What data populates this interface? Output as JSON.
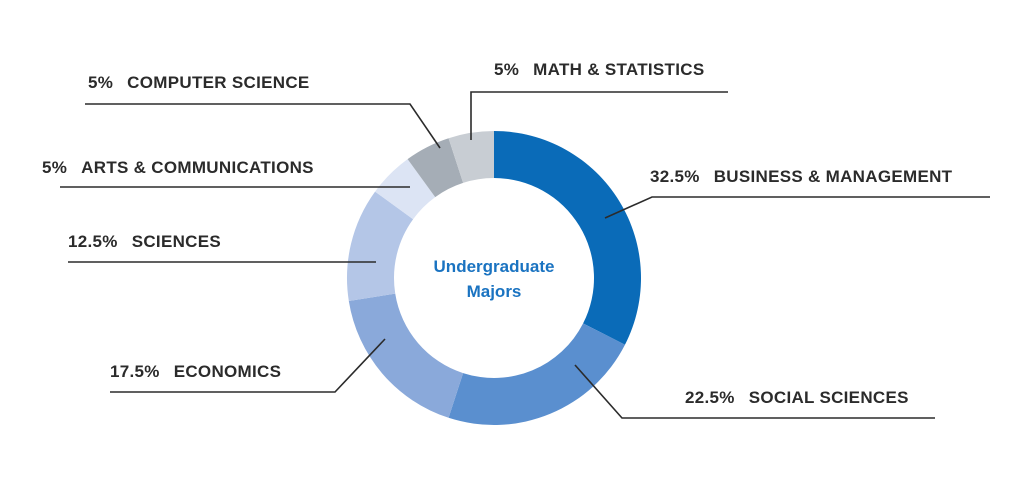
{
  "chart_data": {
    "type": "pie",
    "center_label": [
      "Undergraduate",
      "Majors"
    ],
    "slices": [
      {
        "label": "BUSINESS & MANAGEMENT",
        "percent_text": "32.5%",
        "value": 32.5,
        "color": "#0a6bb8"
      },
      {
        "label": "SOCIAL SCIENCES",
        "percent_text": "22.5%",
        "value": 22.5,
        "color": "#5a8fcf"
      },
      {
        "label": "ECONOMICS",
        "percent_text": "17.5%",
        "value": 17.5,
        "color": "#8aa9da"
      },
      {
        "label": "SCIENCES",
        "percent_text": "12.5%",
        "value": 12.5,
        "color": "#b4c6e7"
      },
      {
        "label": "ARTS & COMMUNICATIONS",
        "percent_text": "5%",
        "value": 5,
        "color": "#dce4f4"
      },
      {
        "label": "COMPUTER SCIENCE",
        "percent_text": "5%",
        "value": 5,
        "color": "#a5adb6"
      },
      {
        "label": "MATH & STATISTICS",
        "percent_text": "5%",
        "value": 5,
        "color": "#c8cdd3"
      }
    ]
  }
}
